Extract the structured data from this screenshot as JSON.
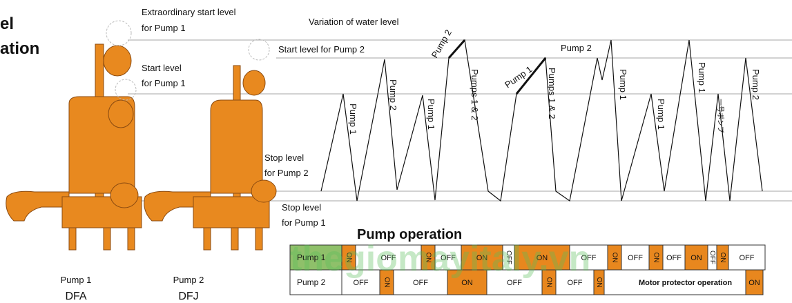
{
  "heading": [
    "el",
    "ation"
  ],
  "level_labels": {
    "extraordinary": [
      "Extraordinary start level",
      "for Pump 1"
    ],
    "start_pump1": [
      "Start level",
      "for Pump 1"
    ],
    "start_pump2": "Start level for Pump 2",
    "stop_pump2": [
      "Stop level",
      "for Pump 2"
    ],
    "stop_pump1": [
      "Stop level",
      "for Pump 1"
    ]
  },
  "chart_title": "Variation of water level",
  "wave_labels": [
    "Pump 1",
    "Pump 2",
    "Pump 1",
    "Pump 2",
    "Pumps 1 & 2",
    "Pump 1",
    "Pumps 1 & 2",
    "Pump 2",
    "Pump 1",
    "Pump 1",
    "Pump 1",
    "一号ポンプ",
    "Pump 2"
  ],
  "pumps": [
    {
      "label": "Pump 1",
      "model": "DFA"
    },
    {
      "label": "Pump 2",
      "model": "DFJ"
    }
  ],
  "watermark": "thegiomayitaly.vn",
  "operation": {
    "title": "Pump operation",
    "on_color": "#e8871e",
    "label_color": "#8fc06a",
    "rows": [
      {
        "label": "Pump 1",
        "cells": [
          "ON",
          "OFF",
          "ON",
          "OFF",
          "ON",
          "OFF",
          "ON",
          "OFF",
          "ON",
          "OFF",
          "ON",
          "OFF",
          "ON",
          "OFF",
          "ON",
          "OFF"
        ]
      },
      {
        "label": "Pump 2",
        "cells": [
          "OFF",
          "ON",
          "OFF",
          "ON",
          "OFF",
          "ON",
          "OFF",
          "ON",
          "Motor protector operation",
          "ON"
        ]
      }
    ]
  }
}
